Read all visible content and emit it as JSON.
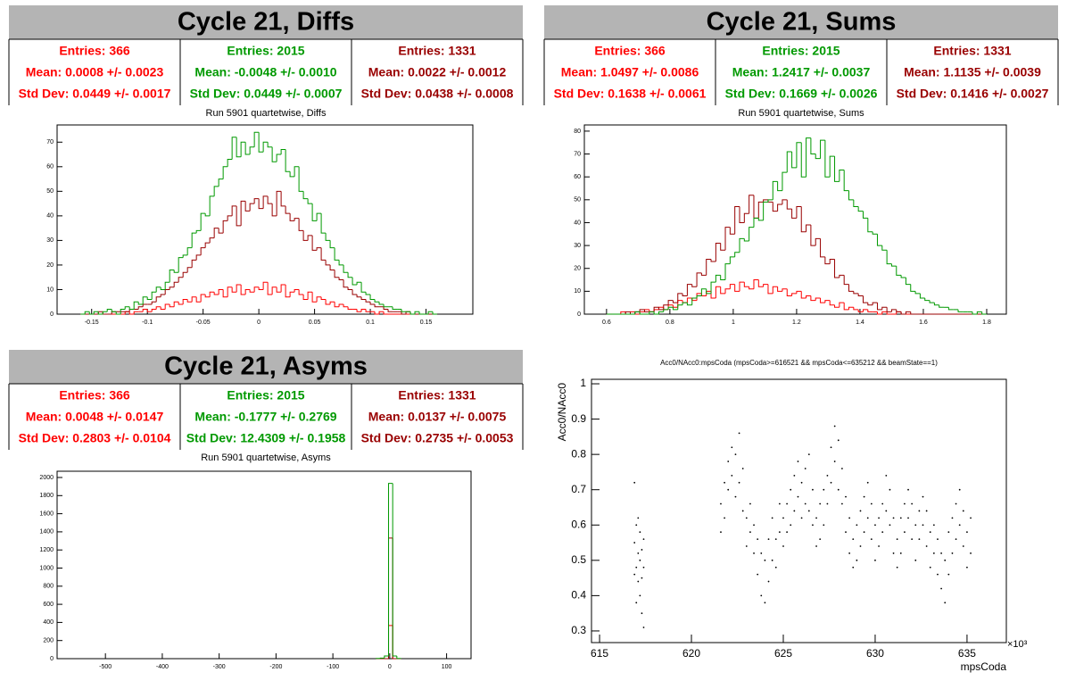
{
  "chart_data": [
    {
      "type": "histogram",
      "title": "Cycle 21, Diffs",
      "subtitle": "Run 5901 quartetwise, Diffs",
      "stats": [
        {
          "color": "#ff0000",
          "lines": [
            "Entries: 366",
            "Mean: 0.0008 +/- 0.0023",
            "Std Dev: 0.0449 +/- 0.0017"
          ]
        },
        {
          "color": "#009900",
          "lines": [
            "Entries: 2015",
            "Mean: -0.0048 +/- 0.0010",
            "Std Dev: 0.0449 +/- 0.0007"
          ]
        },
        {
          "color": "#990000",
          "lines": [
            "Entries: 1331",
            "Mean: 0.0022 +/- 0.0012",
            "Std Dev: 0.0438 +/- 0.0008"
          ]
        }
      ],
      "bins": [
        -0.16,
        -0.156,
        -0.152,
        -0.148,
        -0.144,
        -0.14,
        -0.136,
        -0.132,
        -0.128,
        -0.124,
        -0.12,
        -0.116,
        -0.112,
        -0.108,
        -0.104,
        -0.1,
        -0.096,
        -0.092,
        -0.088,
        -0.084,
        -0.08,
        -0.076,
        -0.072,
        -0.068,
        -0.064,
        -0.06,
        -0.056,
        -0.052,
        -0.048,
        -0.044,
        -0.04,
        -0.036,
        -0.032,
        -0.028,
        -0.024,
        -0.02,
        -0.016,
        -0.012,
        -0.008,
        -0.004,
        0,
        0.004,
        0.008,
        0.012,
        0.016,
        0.02,
        0.024,
        0.028,
        0.032,
        0.036,
        0.04,
        0.044,
        0.048,
        0.052,
        0.056,
        0.06,
        0.064,
        0.068,
        0.072,
        0.076,
        0.08,
        0.084,
        0.088,
        0.092,
        0.096,
        0.1,
        0.104,
        0.108,
        0.112,
        0.116,
        0.12,
        0.124,
        0.128,
        0.132,
        0.136,
        0.14,
        0.144,
        0.148,
        0.152,
        0.156,
        0.16
      ],
      "series": [
        {
          "color": "#ff0000",
          "values": [
            0,
            0,
            0,
            0,
            0,
            0,
            0,
            0,
            0,
            0,
            1,
            0,
            1,
            1,
            2,
            1,
            2,
            3,
            2,
            4,
            3,
            5,
            4,
            6,
            5,
            7,
            5,
            8,
            7,
            9,
            8,
            10,
            7,
            11,
            9,
            12,
            8,
            10,
            9,
            11,
            10,
            13,
            8,
            11,
            9,
            12,
            7,
            9,
            10,
            8,
            6,
            9,
            5,
            7,
            6,
            4,
            5,
            3,
            4,
            3,
            2,
            2,
            1,
            2,
            1,
            1,
            0,
            1,
            0,
            0,
            0,
            0,
            0,
            0,
            0,
            0,
            0,
            0,
            0,
            0
          ]
        },
        {
          "color": "#990000",
          "values": [
            0,
            0,
            0,
            0,
            1,
            0,
            0,
            1,
            1,
            1,
            1,
            2,
            2,
            3,
            4,
            4,
            5,
            7,
            8,
            10,
            11,
            13,
            15,
            17,
            19,
            22,
            24,
            27,
            29,
            31,
            35,
            33,
            38,
            40,
            44,
            36,
            46,
            42,
            45,
            47,
            43,
            48,
            45,
            40,
            50,
            44,
            41,
            38,
            39,
            34,
            30,
            32,
            26,
            27,
            22,
            20,
            18,
            15,
            14,
            11,
            10,
            8,
            7,
            6,
            5,
            4,
            3,
            3,
            2,
            1,
            1,
            1,
            0,
            1,
            0,
            0,
            0,
            0,
            0,
            0
          ]
        },
        {
          "color": "#009900",
          "values": [
            0,
            1,
            0,
            1,
            0,
            1,
            2,
            1,
            0,
            2,
            3,
            2,
            5,
            4,
            7,
            6,
            9,
            11,
            10,
            13,
            18,
            17,
            23,
            24,
            27,
            33,
            34,
            41,
            40,
            48,
            52,
            55,
            60,
            63,
            72,
            64,
            70,
            65,
            68,
            74,
            66,
            70,
            68,
            62,
            65,
            67,
            58,
            56,
            60,
            50,
            47,
            45,
            38,
            41,
            33,
            30,
            27,
            22,
            20,
            17,
            15,
            12,
            13,
            9,
            8,
            6,
            5,
            4,
            3,
            3,
            2,
            2,
            1,
            1,
            0,
            1,
            0,
            0,
            1,
            0
          ]
        }
      ],
      "xlim": [
        -0.181,
        0.192
      ],
      "ylim": [
        0,
        77
      ],
      "xticks": [
        -0.15,
        -0.1,
        -0.05,
        0,
        0.05,
        0.1,
        0.15
      ],
      "yticks": [
        0,
        10,
        20,
        30,
        40,
        50,
        60,
        70
      ]
    },
    {
      "type": "histogram",
      "title": "Cycle 21, Sums",
      "subtitle": "Run 5901 quartetwise, Sums",
      "stats": [
        {
          "color": "#ff0000",
          "lines": [
            "Entries: 366",
            "Mean: 1.0497 +/- 0.0086",
            "Std Dev: 0.1638 +/- 0.0061"
          ]
        },
        {
          "color": "#009900",
          "lines": [
            "Entries: 2015",
            "Mean: 1.2417 +/- 0.0037",
            "Std Dev: 0.1669 +/- 0.0026"
          ]
        },
        {
          "color": "#990000",
          "lines": [
            "Entries: 1331",
            "Mean: 1.1135 +/- 0.0039",
            "Std Dev: 0.1416 +/- 0.0027"
          ]
        }
      ],
      "bins": [
        0.6,
        0.615,
        0.63,
        0.645,
        0.66,
        0.675,
        0.69,
        0.705,
        0.72,
        0.735,
        0.75,
        0.765,
        0.78,
        0.795,
        0.81,
        0.825,
        0.84,
        0.855,
        0.87,
        0.885,
        0.9,
        0.915,
        0.93,
        0.945,
        0.96,
        0.975,
        0.99,
        1.005,
        1.02,
        1.035,
        1.05,
        1.065,
        1.08,
        1.095,
        1.11,
        1.125,
        1.14,
        1.155,
        1.17,
        1.185,
        1.2,
        1.215,
        1.23,
        1.245,
        1.26,
        1.275,
        1.29,
        1.305,
        1.32,
        1.335,
        1.35,
        1.365,
        1.38,
        1.395,
        1.41,
        1.425,
        1.44,
        1.455,
        1.47,
        1.485,
        1.5,
        1.515,
        1.53,
        1.545,
        1.56,
        1.575,
        1.59,
        1.605,
        1.62,
        1.635,
        1.65,
        1.665,
        1.68,
        1.695,
        1.71,
        1.725,
        1.74,
        1.755,
        1.77,
        1.785,
        1.8
      ],
      "series": [
        {
          "color": "#ff0000",
          "values": [
            0,
            0,
            0,
            1,
            0,
            1,
            0,
            1,
            2,
            1,
            2,
            3,
            2,
            4,
            3,
            6,
            5,
            7,
            6,
            9,
            8,
            10,
            7,
            12,
            9,
            11,
            13,
            10,
            14,
            12,
            11,
            15,
            12,
            13,
            9,
            12,
            10,
            11,
            8,
            9,
            10,
            7,
            8,
            6,
            7,
            5,
            6,
            4,
            3,
            5,
            2,
            3,
            2,
            1,
            2,
            1,
            1,
            0,
            1,
            0,
            0,
            1,
            0,
            0,
            0,
            0,
            0,
            0,
            0,
            0,
            0,
            0,
            0,
            0,
            0,
            0,
            0,
            0,
            0,
            0
          ]
        },
        {
          "color": "#990000",
          "values": [
            0,
            0,
            0,
            0,
            1,
            0,
            1,
            2,
            1,
            1,
            3,
            2,
            4,
            6,
            5,
            9,
            8,
            13,
            12,
            18,
            17,
            24,
            23,
            31,
            28,
            38,
            35,
            47,
            40,
            44,
            52,
            42,
            49,
            50,
            49,
            45,
            48,
            50,
            46,
            42,
            47,
            36,
            39,
            30,
            33,
            25,
            22,
            24,
            16,
            17,
            13,
            10,
            9,
            8,
            5,
            4,
            5,
            2,
            3,
            1,
            2,
            1,
            0,
            1,
            0,
            0,
            0,
            0,
            0,
            0,
            0,
            0,
            0,
            0,
            0,
            0,
            0,
            0,
            0,
            0
          ]
        },
        {
          "color": "#009900",
          "values": [
            0,
            0,
            0,
            0,
            0,
            0,
            1,
            0,
            0,
            1,
            0,
            1,
            2,
            3,
            2,
            4,
            5,
            4,
            7,
            8,
            11,
            9,
            14,
            17,
            15,
            22,
            25,
            27,
            33,
            32,
            38,
            42,
            41,
            49,
            50,
            58,
            54,
            62,
            71,
            64,
            75,
            60,
            77,
            70,
            68,
            76,
            60,
            69,
            58,
            63,
            54,
            50,
            47,
            45,
            42,
            36,
            35,
            30,
            28,
            22,
            21,
            17,
            16,
            13,
            10,
            9,
            7,
            6,
            5,
            4,
            3,
            3,
            2,
            2,
            1,
            1,
            1,
            0,
            1,
            0
          ]
        }
      ],
      "xlim": [
        0.53,
        1.862
      ],
      "ylim": [
        0,
        82.7
      ],
      "xticks": [
        0.6,
        0.8,
        1,
        1.2,
        1.4,
        1.6,
        1.8
      ],
      "yticks": [
        0,
        10,
        20,
        30,
        40,
        50,
        60,
        70,
        80
      ]
    },
    {
      "type": "histogram",
      "title": "Cycle 21, Asyms",
      "subtitle": "Run 5901 quartetwise, Asyms",
      "stats": [
        {
          "color": "#ff0000",
          "lines": [
            "Entries: 366",
            "Mean: 0.0048 +/- 0.0147",
            "Std Dev: 0.2803 +/- 0.0104"
          ]
        },
        {
          "color": "#009900",
          "lines": [
            "Entries: 2015",
            "Mean: -0.1777 +/- 0.2769",
            "Std Dev: 12.4309 +/- 0.1958"
          ]
        },
        {
          "color": "#990000",
          "lines": [
            "Entries: 1331",
            "Mean: 0.0137 +/- 0.0075",
            "Std Dev: 0.2735 +/- 0.0053"
          ]
        }
      ],
      "bins": [
        -24,
        -16.7,
        -9.4,
        -2.1,
        5.2,
        12.5,
        19.8
      ],
      "series": [
        {
          "color": "#ff0000",
          "values": [
            0,
            0,
            0,
            366,
            0,
            0
          ]
        },
        {
          "color": "#990000",
          "values": [
            0,
            0,
            0,
            1331,
            0,
            0
          ]
        },
        {
          "color": "#009900",
          "values": [
            2,
            6,
            30,
            1935,
            30,
            3
          ]
        }
      ],
      "xlim": [
        -585,
        143
      ],
      "ylim": [
        0,
        2069
      ],
      "xticks": [
        -500,
        -400,
        -300,
        -200,
        -100,
        0,
        100
      ],
      "yticks": [
        0,
        200,
        400,
        600,
        800,
        1000,
        1200,
        1400,
        1600,
        1800,
        2000
      ]
    },
    {
      "type": "scatter",
      "title": "Acc0/NAcc0:mpsCoda (mpsCoda>=616521 && mpsCoda<=635212 && beamState==1)",
      "x_label": "mpsCoda",
      "y_label": "Acc0/NAcc0",
      "x_exponent": "×10³",
      "color": "#000000",
      "x": [
        616.9,
        616.9,
        616.9,
        617,
        617,
        617,
        617.1,
        617.1,
        617.1,
        617.2,
        617.2,
        617.2,
        617.3,
        617.3,
        617.3,
        617.4,
        617.4,
        617.4,
        621.6,
        621.6,
        621.8,
        621.8,
        622,
        622,
        622.2,
        622.2,
        622.4,
        622.4,
        622.6,
        622.6,
        622.8,
        622.8,
        623,
        623,
        623.2,
        623.2,
        623.4,
        623.4,
        623.6,
        623.6,
        623.8,
        623.8,
        624,
        624,
        624.2,
        624.2,
        624.4,
        624.4,
        624.6,
        624.6,
        624.8,
        624.8,
        625,
        625,
        625.2,
        625.2,
        625.4,
        625.4,
        625.6,
        625.6,
        625.8,
        625.8,
        626,
        626,
        626.2,
        626.2,
        626.4,
        626.4,
        626.6,
        626.6,
        626.8,
        626.8,
        627,
        627,
        627.2,
        627.2,
        627.4,
        627.4,
        627.6,
        627.6,
        627.8,
        627.8,
        628,
        628,
        628.2,
        628.2,
        628.4,
        628.4,
        628.6,
        628.6,
        628.8,
        628.8,
        629,
        629,
        629.2,
        629.2,
        629.4,
        629.4,
        629.6,
        629.6,
        629.8,
        629.8,
        630,
        630,
        630.2,
        630.2,
        630.4,
        630.4,
        630.6,
        630.6,
        630.8,
        630.8,
        631,
        631,
        631.2,
        631.2,
        631.4,
        631.4,
        631.6,
        631.6,
        631.8,
        631.8,
        632,
        632,
        632.2,
        632.2,
        632.4,
        632.4,
        632.6,
        632.6,
        632.8,
        632.8,
        633,
        633,
        633.2,
        633.2,
        633.4,
        633.4,
        633.6,
        633.6,
        633.8,
        633.8,
        634,
        634,
        634.2,
        634.2,
        634.4,
        634.4,
        634.6,
        634.6,
        634.8,
        634.8,
        635,
        635,
        635.2,
        635.2
      ],
      "values": [
        0.72,
        0.55,
        0.46,
        0.6,
        0.48,
        0.38,
        0.52,
        0.44,
        0.62,
        0.5,
        0.4,
        0.58,
        0.45,
        0.35,
        0.53,
        0.48,
        0.31,
        0.56,
        0.58,
        0.66,
        0.62,
        0.72,
        0.7,
        0.78,
        0.74,
        0.82,
        0.8,
        0.68,
        0.86,
        0.72,
        0.76,
        0.64,
        0.62,
        0.54,
        0.58,
        0.66,
        0.52,
        0.6,
        0.46,
        0.56,
        0.4,
        0.52,
        0.38,
        0.5,
        0.44,
        0.56,
        0.5,
        0.62,
        0.56,
        0.48,
        0.58,
        0.66,
        0.62,
        0.54,
        0.66,
        0.58,
        0.7,
        0.6,
        0.64,
        0.74,
        0.68,
        0.78,
        0.72,
        0.62,
        0.76,
        0.66,
        0.8,
        0.64,
        0.7,
        0.6,
        0.62,
        0.54,
        0.56,
        0.66,
        0.6,
        0.7,
        0.66,
        0.74,
        0.72,
        0.82,
        0.78,
        0.88,
        0.84,
        0.7,
        0.76,
        0.66,
        0.68,
        0.58,
        0.62,
        0.52,
        0.56,
        0.48,
        0.5,
        0.6,
        0.54,
        0.64,
        0.58,
        0.68,
        0.62,
        0.72,
        0.66,
        0.56,
        0.6,
        0.5,
        0.54,
        0.62,
        0.58,
        0.66,
        0.64,
        0.74,
        0.7,
        0.6,
        0.62,
        0.52,
        0.56,
        0.48,
        0.52,
        0.62,
        0.58,
        0.66,
        0.62,
        0.7,
        0.66,
        0.56,
        0.6,
        0.5,
        0.56,
        0.64,
        0.6,
        0.68,
        0.64,
        0.54,
        0.58,
        0.48,
        0.52,
        0.6,
        0.46,
        0.56,
        0.42,
        0.52,
        0.38,
        0.5,
        0.46,
        0.58,
        0.52,
        0.62,
        0.56,
        0.66,
        0.6,
        0.7,
        0.54,
        0.64,
        0.58,
        0.48,
        0.52,
        0.62
      ],
      "xlim": [
        614.56,
        637.14
      ],
      "ylim": [
        0.267,
        1.0127
      ],
      "xticks": [
        615,
        620,
        625,
        630,
        635
      ],
      "yticks": [
        0.3,
        0.4,
        0.5,
        0.6,
        0.7,
        0.8,
        0.9,
        1
      ]
    }
  ]
}
